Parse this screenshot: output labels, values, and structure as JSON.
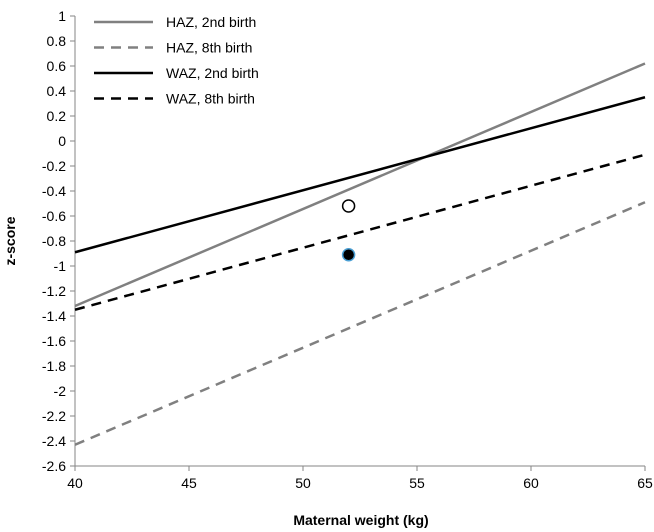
{
  "chart_data": {
    "type": "line",
    "xlabel": "Maternal weight (kg)",
    "ylabel": "z-score",
    "xlim": [
      40,
      65
    ],
    "ylim": [
      -2.6,
      1
    ],
    "x_ticks": [
      "40",
      "45",
      "50",
      "55",
      "60",
      "65"
    ],
    "y_ticks": [
      "1",
      "0.8",
      "0.6",
      "0.4",
      "0.2",
      "0",
      "-0.2",
      "-0.4",
      "-0.6",
      "-0.8",
      "-1",
      "-1.2",
      "-1.4",
      "-1.6",
      "-1.8",
      "-2",
      "-2.2",
      "-2.4",
      "-2.6"
    ],
    "grid": false,
    "legend_position": "top-left",
    "series": [
      {
        "name": "HAZ, 2nd birth",
        "x": [
          40,
          65
        ],
        "y": [
          -1.32,
          0.62
        ],
        "color": "#808080",
        "dash": "solid"
      },
      {
        "name": "HAZ, 8th birth",
        "x": [
          40,
          65
        ],
        "y": [
          -2.43,
          -0.49
        ],
        "color": "#808080",
        "dash": "dashed"
      },
      {
        "name": "WAZ, 2nd birth",
        "x": [
          40,
          65
        ],
        "y": [
          -0.89,
          0.35
        ],
        "color": "#000000",
        "dash": "solid"
      },
      {
        "name": "WAZ, 8th birth",
        "x": [
          40,
          65
        ],
        "y": [
          -1.35,
          -0.11
        ],
        "color": "#000000",
        "dash": "dashed"
      }
    ],
    "points": [
      {
        "x": 52,
        "y": -0.52,
        "fill": "#ffffff",
        "stroke": "#000000"
      },
      {
        "x": 52,
        "y": -0.91,
        "fill": "#000000",
        "stroke": "#4a9fd4"
      }
    ]
  }
}
